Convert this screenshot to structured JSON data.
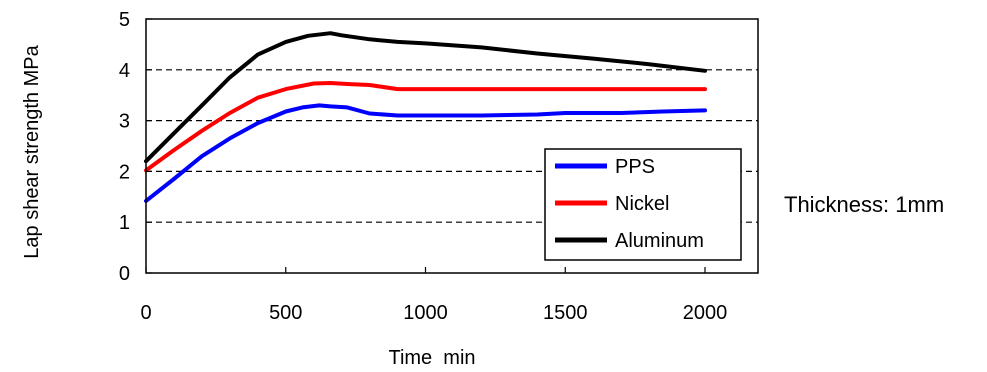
{
  "chart_data": {
    "type": "line",
    "xlabel": "Time  min",
    "ylabel": "Lap shear strength MPa",
    "xlim": [
      0,
      2000
    ],
    "ylim": [
      0,
      5
    ],
    "x_ticks": [
      "0",
      "500",
      "1000",
      "1500",
      "2000"
    ],
    "y_ticks": [
      "0",
      "1",
      "2",
      "3",
      "4",
      "5"
    ],
    "gridlines": "dashed horizontal at 1, 2, 3, 4",
    "legend_position": "bottom-right",
    "annotation": "Thickness: 1mm",
    "series": [
      {
        "name": "PPS",
        "color": "#0000ff",
        "points": [
          [
            0,
            1.42
          ],
          [
            100,
            1.85
          ],
          [
            200,
            2.3
          ],
          [
            300,
            2.65
          ],
          [
            400,
            2.95
          ],
          [
            500,
            3.18
          ],
          [
            560,
            3.26
          ],
          [
            620,
            3.3
          ],
          [
            660,
            3.28
          ],
          [
            720,
            3.26
          ],
          [
            800,
            3.14
          ],
          [
            900,
            3.1
          ],
          [
            1000,
            3.1
          ],
          [
            1200,
            3.1
          ],
          [
            1400,
            3.12
          ],
          [
            1500,
            3.15
          ],
          [
            1700,
            3.15
          ],
          [
            1850,
            3.18
          ],
          [
            2000,
            3.2
          ]
        ]
      },
      {
        "name": "Nickel",
        "color": "#ff0000",
        "points": [
          [
            0,
            2.02
          ],
          [
            100,
            2.42
          ],
          [
            200,
            2.8
          ],
          [
            300,
            3.15
          ],
          [
            400,
            3.45
          ],
          [
            500,
            3.62
          ],
          [
            600,
            3.73
          ],
          [
            660,
            3.74
          ],
          [
            720,
            3.72
          ],
          [
            800,
            3.7
          ],
          [
            900,
            3.62
          ],
          [
            1000,
            3.62
          ],
          [
            1200,
            3.62
          ],
          [
            1500,
            3.62
          ],
          [
            1800,
            3.62
          ],
          [
            2000,
            3.62
          ]
        ]
      },
      {
        "name": "Aluminum",
        "color": "#000000",
        "points": [
          [
            0,
            2.2
          ],
          [
            100,
            2.75
          ],
          [
            200,
            3.3
          ],
          [
            300,
            3.85
          ],
          [
            400,
            4.3
          ],
          [
            500,
            4.55
          ],
          [
            580,
            4.67
          ],
          [
            660,
            4.72
          ],
          [
            700,
            4.68
          ],
          [
            800,
            4.6
          ],
          [
            900,
            4.55
          ],
          [
            1000,
            4.52
          ],
          [
            1200,
            4.44
          ],
          [
            1400,
            4.32
          ],
          [
            1600,
            4.22
          ],
          [
            1800,
            4.11
          ],
          [
            2000,
            3.98
          ]
        ]
      }
    ]
  }
}
